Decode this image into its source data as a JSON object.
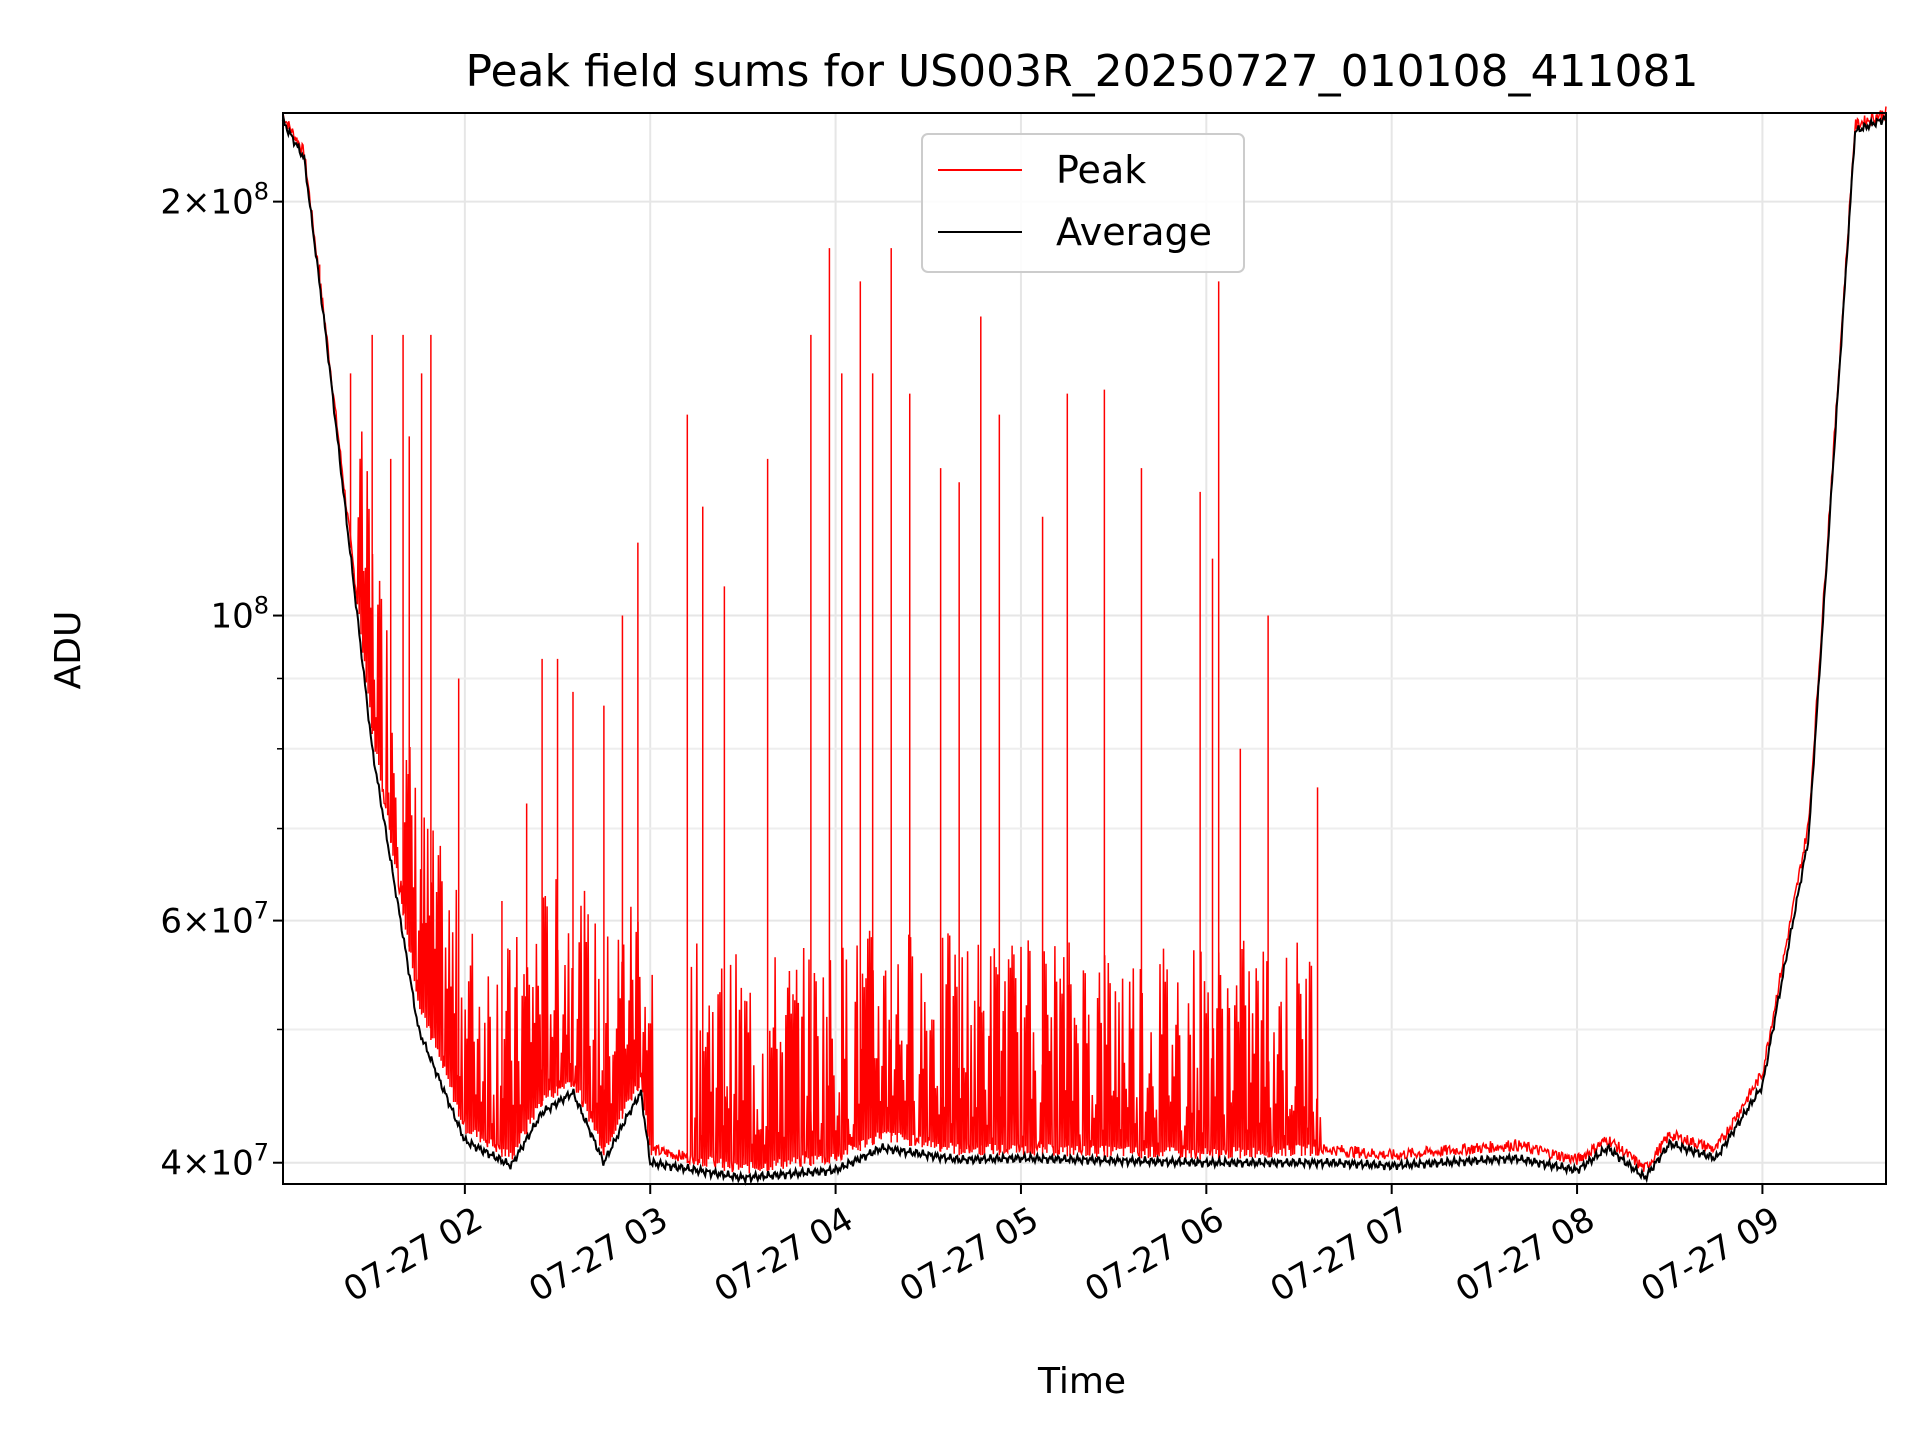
{
  "chart_data": {
    "type": "line",
    "title": "Peak field sums for US003R_20250727_010108_411081",
    "xlabel": "Time",
    "ylabel": "ADU",
    "yscale": "log",
    "ylim": [
      38600000,
      232000000
    ],
    "xlim": [
      "2025-07-27 01:01:08",
      "2025-07-27 09:40:00"
    ],
    "grid": true,
    "legend_position": "top-center",
    "x_ticks": [
      {
        "value": "2025-07-27 02:00",
        "label": "07-27 02"
      },
      {
        "value": "2025-07-27 03:00",
        "label": "07-27 03"
      },
      {
        "value": "2025-07-27 04:00",
        "label": "07-27 04"
      },
      {
        "value": "2025-07-27 05:00",
        "label": "07-27 05"
      },
      {
        "value": "2025-07-27 06:00",
        "label": "07-27 06"
      },
      {
        "value": "2025-07-27 07:00",
        "label": "07-27 07"
      },
      {
        "value": "2025-07-27 08:00",
        "label": "07-27 08"
      },
      {
        "value": "2025-07-27 09:00",
        "label": "07-27 09"
      }
    ],
    "y_ticks": [
      {
        "value": 40000000,
        "mantissa": "4",
        "exponent": "7"
      },
      {
        "value": 60000000,
        "mantissa": "6",
        "exponent": "7"
      },
      {
        "value": 100000000,
        "mantissa": "",
        "exponent": "8"
      },
      {
        "value": 200000000,
        "mantissa": "2",
        "exponent": "8"
      }
    ],
    "y_minor_ticks": [
      50000000,
      70000000,
      80000000,
      90000000
    ],
    "series": [
      {
        "name": "Peak",
        "color": "#ff0000",
        "baseline": [
          [
            "2025-07-27 01:01",
            229000000
          ],
          [
            "2025-07-27 01:08",
            215000000
          ],
          [
            "2025-07-27 01:15",
            160000000
          ],
          [
            "2025-07-27 01:30",
            82000000
          ],
          [
            "2025-07-27 01:45",
            52000000
          ],
          [
            "2025-07-27 02:00",
            42000000
          ],
          [
            "2025-07-27 02:15",
            40000000
          ],
          [
            "2025-07-27 02:25",
            44000000
          ],
          [
            "2025-07-27 02:35",
            45500000
          ],
          [
            "2025-07-27 02:45",
            40500000
          ],
          [
            "2025-07-27 02:52",
            43500000
          ],
          [
            "2025-07-27 02:57",
            45500000
          ],
          [
            "2025-07-27 03:00",
            40500000
          ],
          [
            "2025-07-27 03:30",
            39200000
          ],
          [
            "2025-07-27 04:00",
            40000000
          ],
          [
            "2025-07-27 04:15",
            41500000
          ],
          [
            "2025-07-27 04:40",
            40500000
          ],
          [
            "2025-07-27 05:00",
            40500000
          ],
          [
            "2025-07-27 06:00",
            40200000
          ],
          [
            "2025-07-27 06:40",
            40500000
          ],
          [
            "2025-07-27 07:00",
            40100000
          ],
          [
            "2025-07-27 07:40",
            40800000
          ],
          [
            "2025-07-27 08:00",
            39800000
          ],
          [
            "2025-07-27 08:10",
            41200000
          ],
          [
            "2025-07-27 08:22",
            39200000
          ],
          [
            "2025-07-27 08:30",
            41500000
          ],
          [
            "2025-07-27 08:45",
            40500000
          ],
          [
            "2025-07-27 09:00",
            46000000
          ],
          [
            "2025-07-27 09:15",
            70000000
          ],
          [
            "2025-07-27 09:30",
            225000000
          ],
          [
            "2025-07-27 09:40",
            230000000
          ]
        ],
        "spikes": [
          [
            "2025-07-27 01:13",
            180000000
          ],
          [
            "2025-07-27 01:23",
            150000000
          ],
          [
            "2025-07-27 01:30",
            160000000
          ],
          [
            "2025-07-27 01:36",
            130000000
          ],
          [
            "2025-07-27 01:40",
            160000000
          ],
          [
            "2025-07-27 01:42",
            135000000
          ],
          [
            "2025-07-27 01:46",
            150000000
          ],
          [
            "2025-07-27 01:49",
            160000000
          ],
          [
            "2025-07-27 01:58",
            90000000
          ],
          [
            "2025-07-27 02:12",
            62000000
          ],
          [
            "2025-07-27 02:20",
            73000000
          ],
          [
            "2025-07-27 02:25",
            93000000
          ],
          [
            "2025-07-27 02:30",
            93000000
          ],
          [
            "2025-07-27 02:35",
            88000000
          ],
          [
            "2025-07-27 02:45",
            86000000
          ],
          [
            "2025-07-27 02:51",
            100000000
          ],
          [
            "2025-07-27 02:56",
            113000000
          ],
          [
            "2025-07-27 03:12",
            140000000
          ],
          [
            "2025-07-27 03:17",
            120000000
          ],
          [
            "2025-07-27 03:24",
            105000000
          ],
          [
            "2025-07-27 03:38",
            130000000
          ],
          [
            "2025-07-27 03:52",
            160000000
          ],
          [
            "2025-07-27 03:58",
            185000000
          ],
          [
            "2025-07-27 04:02",
            150000000
          ],
          [
            "2025-07-27 04:08",
            175000000
          ],
          [
            "2025-07-27 04:12",
            150000000
          ],
          [
            "2025-07-27 04:18",
            185000000
          ],
          [
            "2025-07-27 04:24",
            145000000
          ],
          [
            "2025-07-27 04:34",
            128000000
          ],
          [
            "2025-07-27 04:40",
            125000000
          ],
          [
            "2025-07-27 04:47",
            165000000
          ],
          [
            "2025-07-27 04:53",
            140000000
          ],
          [
            "2025-07-27 05:07",
            118000000
          ],
          [
            "2025-07-27 05:15",
            145000000
          ],
          [
            "2025-07-27 05:27",
            146000000
          ],
          [
            "2025-07-27 05:39",
            128000000
          ],
          [
            "2025-07-27 05:58",
            123000000
          ],
          [
            "2025-07-27 06:02",
            110000000
          ],
          [
            "2025-07-27 06:04",
            175000000
          ],
          [
            "2025-07-27 06:11",
            80000000
          ],
          [
            "2025-07-27 06:20",
            100000000
          ],
          [
            "2025-07-27 06:36",
            75000000
          ]
        ]
      },
      {
        "name": "Average",
        "color": "#000000",
        "points": [
          [
            "2025-07-27 01:01",
            229000000
          ],
          [
            "2025-07-27 01:08",
            215000000
          ],
          [
            "2025-07-27 01:15",
            160000000
          ],
          [
            "2025-07-27 01:30",
            80000000
          ],
          [
            "2025-07-27 01:45",
            50000000
          ],
          [
            "2025-07-27 02:00",
            41500000
          ],
          [
            "2025-07-27 02:15",
            39800000
          ],
          [
            "2025-07-27 02:25",
            43500000
          ],
          [
            "2025-07-27 02:35",
            45000000
          ],
          [
            "2025-07-27 02:45",
            40000000
          ],
          [
            "2025-07-27 02:52",
            43000000
          ],
          [
            "2025-07-27 02:57",
            45000000
          ],
          [
            "2025-07-27 03:00",
            40000000
          ],
          [
            "2025-07-27 03:30",
            39000000
          ],
          [
            "2025-07-27 04:00",
            39500000
          ],
          [
            "2025-07-27 04:15",
            41000000
          ],
          [
            "2025-07-27 04:40",
            40200000
          ],
          [
            "2025-07-27 05:00",
            40300000
          ],
          [
            "2025-07-27 06:00",
            40000000
          ],
          [
            "2025-07-27 06:40",
            40000000
          ],
          [
            "2025-07-27 07:00",
            39800000
          ],
          [
            "2025-07-27 07:40",
            40300000
          ],
          [
            "2025-07-27 08:00",
            39500000
          ],
          [
            "2025-07-27 08:10",
            41000000
          ],
          [
            "2025-07-27 08:22",
            39000000
          ],
          [
            "2025-07-27 08:30",
            41300000
          ],
          [
            "2025-07-27 08:45",
            40300000
          ],
          [
            "2025-07-27 09:00",
            45500000
          ],
          [
            "2025-07-27 09:15",
            69000000
          ],
          [
            "2025-07-27 09:30",
            225000000
          ],
          [
            "2025-07-27 09:40",
            230000000
          ]
        ]
      }
    ]
  }
}
